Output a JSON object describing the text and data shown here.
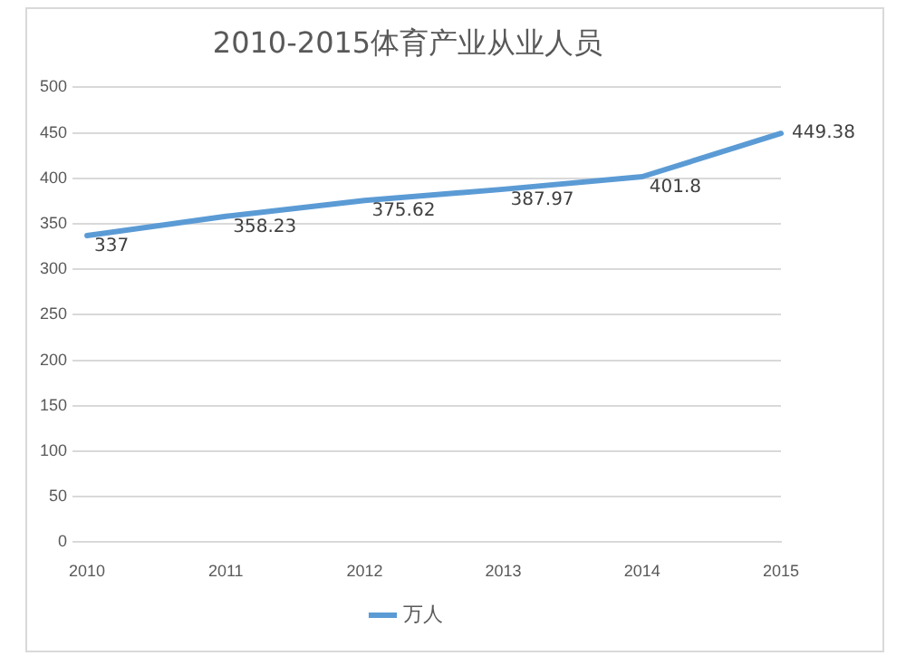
{
  "chart_data": {
    "type": "line",
    "title": "2010-2015体育产业从业人员",
    "categories": [
      "2010",
      "2011",
      "2012",
      "2013",
      "2014",
      "2015"
    ],
    "series": [
      {
        "name": "万人",
        "color": "#5b9bd5",
        "values": [
          337,
          358.23,
          375.62,
          387.97,
          401.8,
          449.38
        ]
      }
    ],
    "ylim": [
      0,
      500
    ],
    "yticks": [
      0,
      50,
      100,
      150,
      200,
      250,
      300,
      350,
      400,
      450,
      500
    ],
    "grid": "y",
    "legend": "bottom",
    "marker": "none",
    "data_labels": true
  }
}
